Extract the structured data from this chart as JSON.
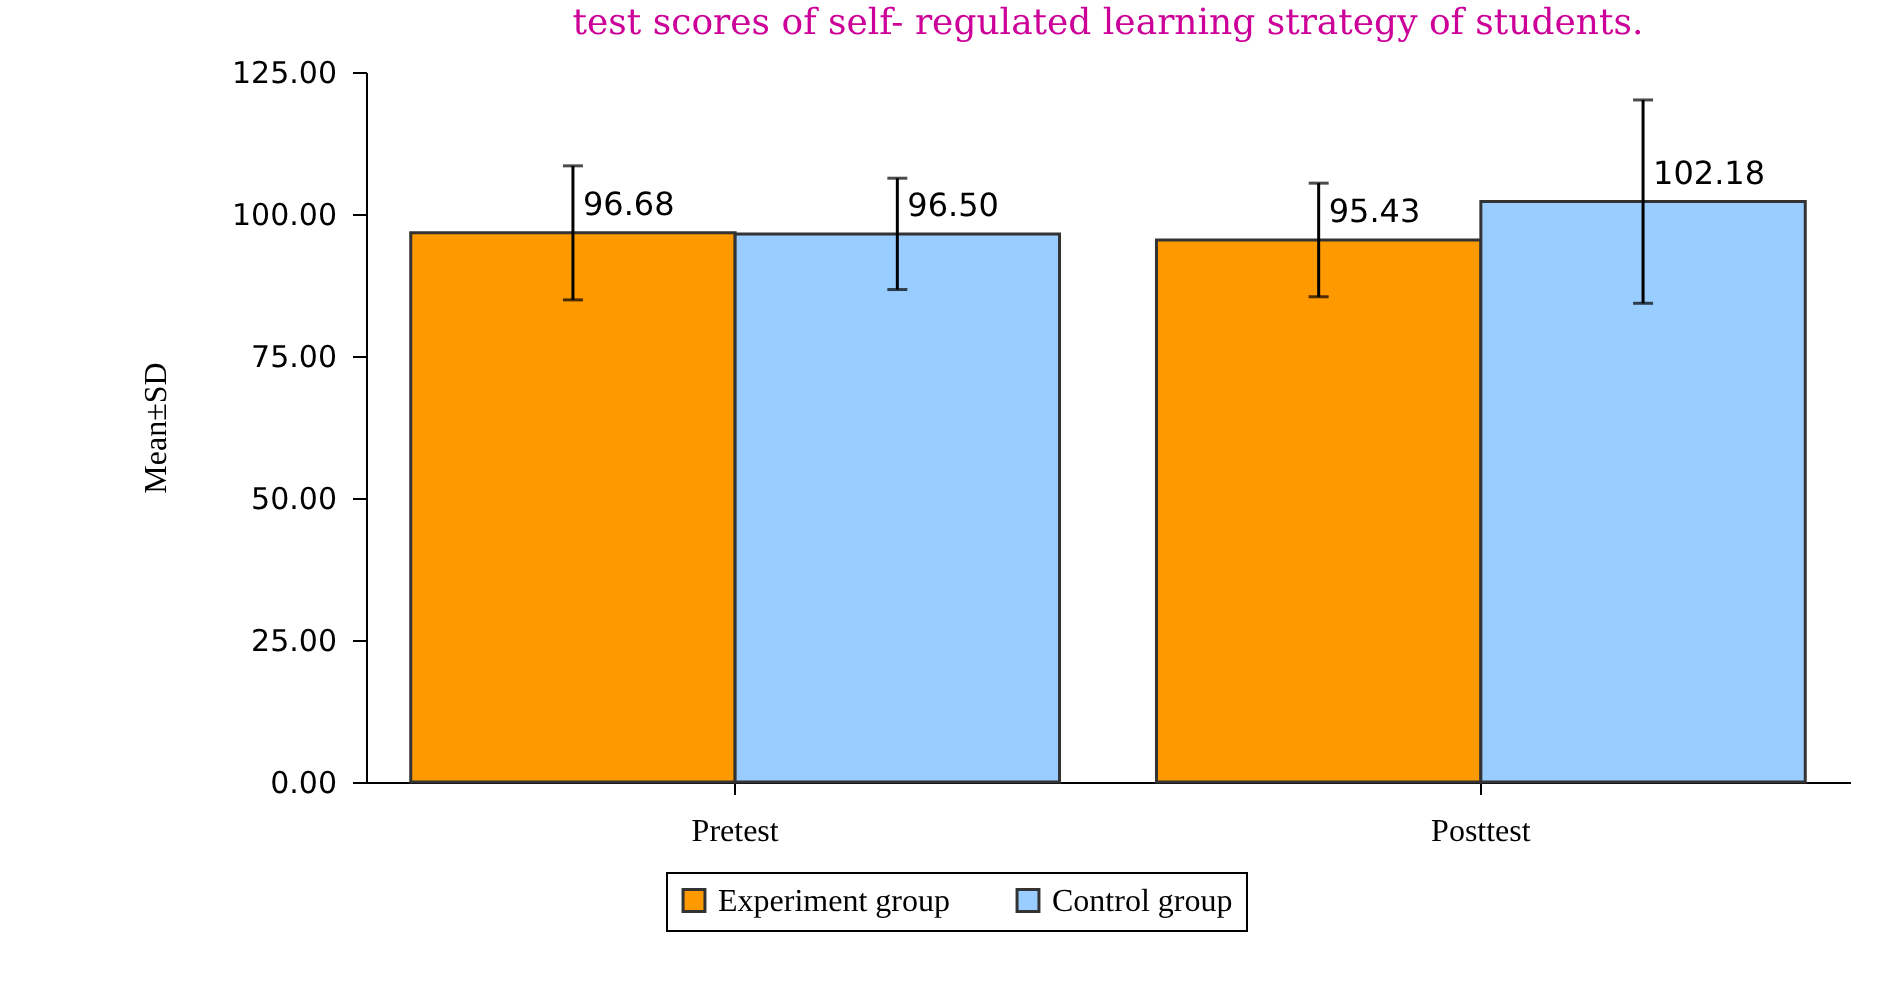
{
  "chart_data": {
    "type": "bar",
    "title": "test scores of self- regulated learning strategy of students.",
    "ylabel": "Mean±SD",
    "categories": [
      "Pretest",
      "Posttest"
    ],
    "series": [
      {
        "name": "Experiment group",
        "color": "#ff9900",
        "values": [
          96.68,
          95.43
        ],
        "value_labels": [
          "96.68",
          "95.43"
        ],
        "errors": [
          11.8,
          10
        ]
      },
      {
        "name": "Control group",
        "color": "#99ccff",
        "values": [
          96.5,
          102.18
        ],
        "value_labels": [
          "96.50",
          "102.18"
        ],
        "errors": [
          9.8,
          17.9
        ]
      }
    ],
    "ylim": [
      0,
      125
    ],
    "yticks": [
      {
        "value": 0,
        "label": "0.00"
      },
      {
        "value": 25,
        "label": "25.00"
      },
      {
        "value": 50,
        "label": "50.00"
      },
      {
        "value": 75,
        "label": "75.00"
      },
      {
        "value": 100,
        "label": "100.00"
      },
      {
        "value": 125,
        "label": "125.00"
      }
    ],
    "grid": false,
    "legend": "bottom"
  }
}
